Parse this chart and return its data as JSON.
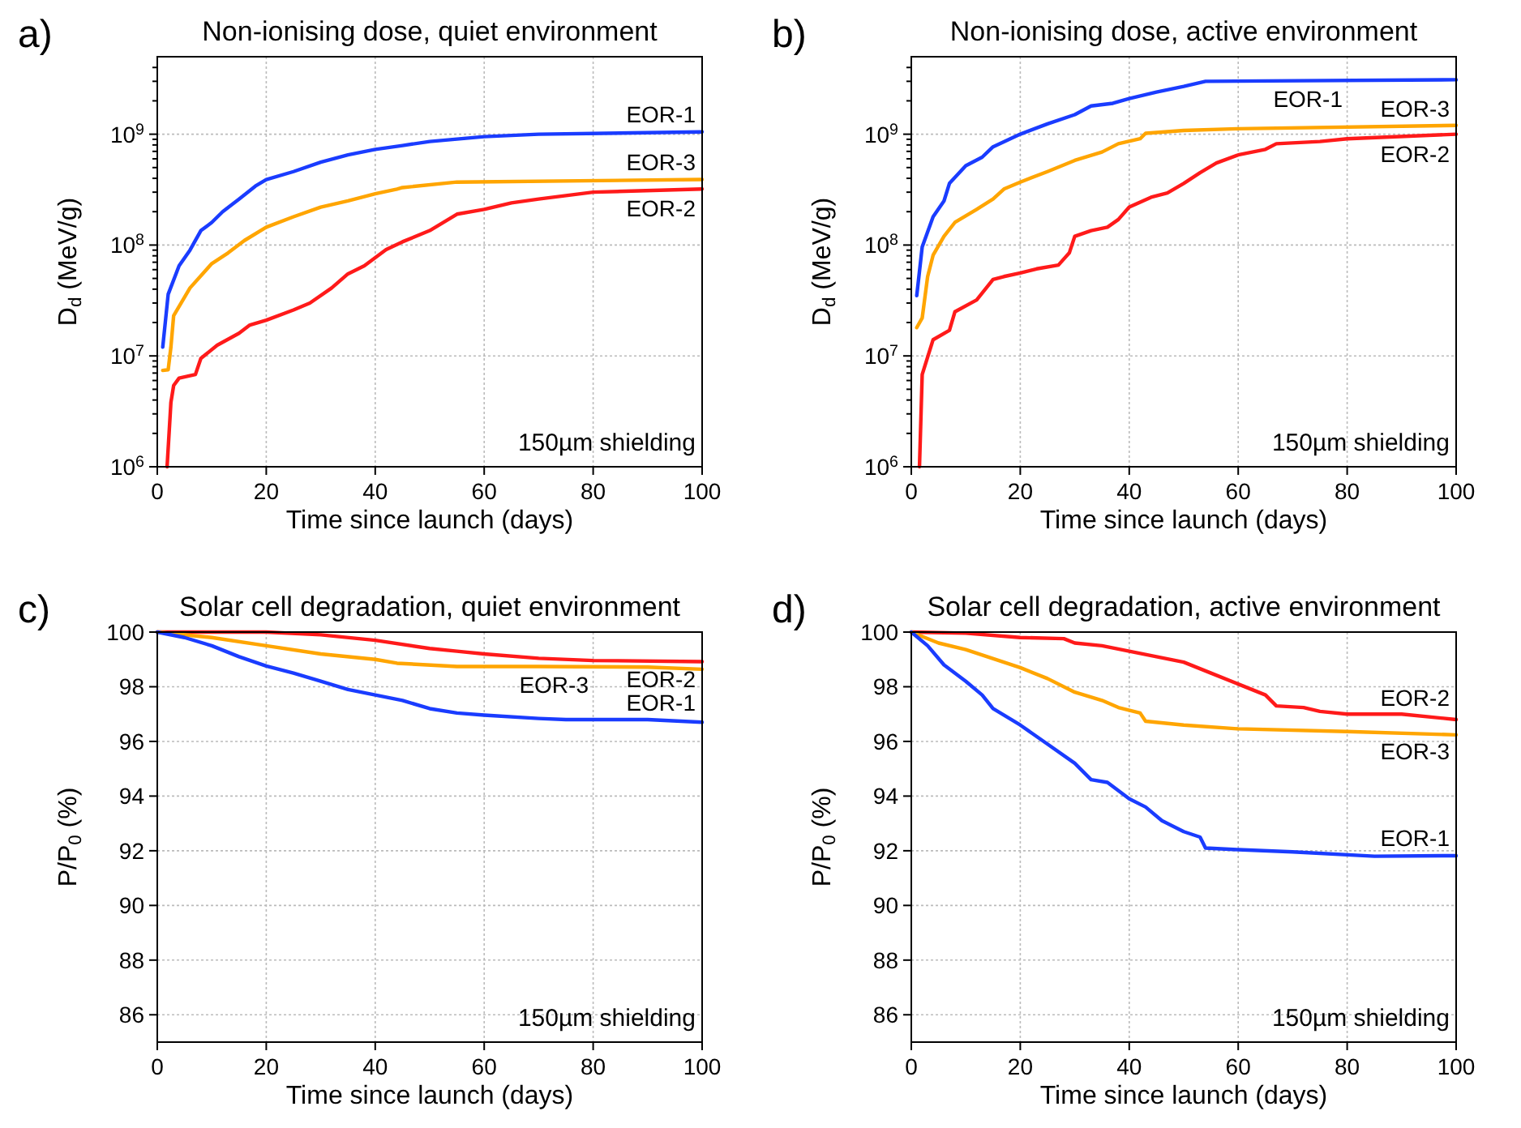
{
  "chart_data": [
    {
      "type": "line",
      "title": "Non-ionising dose, quiet environment",
      "xlabel": "Time since launch (days)",
      "ylabel": "D$_{d}$ (MeV/g)",
      "annotations": [
        "a)",
        "150µm shielding"
      ],
      "log": "y",
      "grid": true,
      "marker": "none",
      "line_style": "solid",
      "xlim": [
        0,
        100
      ],
      "xticks": [
        0,
        20,
        40,
        60,
        80,
        100
      ],
      "ylim": [
        1000000,
        5000000000
      ],
      "yticks": [
        {
          "value": 1000000,
          "label": "10$^{6}$"
        },
        {
          "value": 2000000,
          "label": null
        },
        {
          "value": 3000000,
          "label": null
        },
        {
          "value": 4000000,
          "label": null
        },
        {
          "value": 5000000,
          "label": null
        },
        {
          "value": 6000000,
          "label": null
        },
        {
          "value": 7000000,
          "label": null
        },
        {
          "value": 8000000,
          "label": null
        },
        {
          "value": 9000000,
          "label": null
        },
        {
          "value": 10000000,
          "label": "10$^{7}$"
        },
        {
          "value": 20000000,
          "label": null
        },
        {
          "value": 30000000,
          "label": null
        },
        {
          "value": 40000000,
          "label": null
        },
        {
          "value": 50000000,
          "label": null
        },
        {
          "value": 60000000,
          "label": null
        },
        {
          "value": 70000000,
          "label": null
        },
        {
          "value": 80000000,
          "label": null
        },
        {
          "value": 90000000,
          "label": null
        },
        {
          "value": 100000000,
          "label": "10$^{8}$"
        },
        {
          "value": 200000000,
          "label": null
        },
        {
          "value": 300000000,
          "label": null
        },
        {
          "value": 400000000,
          "label": null
        },
        {
          "value": 500000000,
          "label": null
        },
        {
          "value": 600000000,
          "label": null
        },
        {
          "value": 700000000,
          "label": null
        },
        {
          "value": 800000000,
          "label": null
        },
        {
          "value": 900000000,
          "label": null
        },
        {
          "value": 1000000000,
          "label": "10$^{9}$"
        },
        {
          "value": 2000000000,
          "label": null
        },
        {
          "value": 3000000000,
          "label": null
        },
        {
          "value": 4000000000,
          "label": null
        }
      ],
      "series": [
        {
          "name": "EOR-1",
          "color": "#1a3cff",
          "x": [
            1,
            2,
            4,
            6,
            8,
            10,
            12,
            15,
            18,
            20,
            25,
            30,
            35,
            40,
            45,
            50,
            60,
            70,
            100
          ],
          "values": [
            12000000,
            36000000,
            65000000,
            90000000,
            135000000,
            160000000,
            200000000,
            260000000,
            340000000,
            390000000,
            460000000,
            560000000,
            650000000,
            730000000,
            790000000,
            860000000,
            950000000,
            1000000000,
            1050000000
          ]
        },
        {
          "name": "EOR-3",
          "color": "#ffa500",
          "x": [
            1,
            2,
            2.5,
            3,
            6,
            10,
            13,
            16,
            20,
            25,
            30,
            35,
            40,
            44,
            45,
            55,
            100
          ],
          "values": [
            7400000,
            7500000,
            12000000,
            23000000,
            41000000,
            68000000,
            85000000,
            110000000,
            145000000,
            180000000,
            220000000,
            250000000,
            290000000,
            320000000,
            330000000,
            370000000,
            390000000
          ]
        },
        {
          "name": "EOR-2",
          "color": "#ff1a1a",
          "x": [
            1.8,
            2.5,
            3,
            4,
            7,
            8,
            11,
            15,
            17,
            20,
            25,
            28,
            32,
            35,
            38,
            42,
            45,
            50,
            55,
            60,
            65,
            70,
            80,
            100
          ],
          "values": [
            1000000,
            3800000,
            5400000,
            6300000,
            6800000,
            9500000,
            12500000,
            16000000,
            19000000,
            21000000,
            26000000,
            30000000,
            41000000,
            55000000,
            65000000,
            91000000,
            107000000,
            135000000,
            190000000,
            210000000,
            240000000,
            260000000,
            300000000,
            320000000
          ]
        }
      ]
    },
    {
      "type": "line",
      "title": "Non-ionising dose, active environment",
      "xlabel": "Time since launch (days)",
      "ylabel": "D$_{d}$ (MeV/g)",
      "annotations": [
        "b)",
        "150µm shielding"
      ],
      "log": "y",
      "grid": true,
      "marker": "none",
      "line_style": "solid",
      "xlim": [
        0,
        100
      ],
      "xticks": [
        0,
        20,
        40,
        60,
        80,
        100
      ],
      "ylim": [
        1000000,
        5000000000
      ],
      "yticks": [
        {
          "value": 1000000,
          "label": "10$^{6}$"
        },
        {
          "value": 2000000,
          "label": null
        },
        {
          "value": 3000000,
          "label": null
        },
        {
          "value": 4000000,
          "label": null
        },
        {
          "value": 5000000,
          "label": null
        },
        {
          "value": 6000000,
          "label": null
        },
        {
          "value": 7000000,
          "label": null
        },
        {
          "value": 8000000,
          "label": null
        },
        {
          "value": 9000000,
          "label": null
        },
        {
          "value": 10000000,
          "label": "10$^{7}$"
        },
        {
          "value": 20000000,
          "label": null
        },
        {
          "value": 30000000,
          "label": null
        },
        {
          "value": 40000000,
          "label": null
        },
        {
          "value": 50000000,
          "label": null
        },
        {
          "value": 60000000,
          "label": null
        },
        {
          "value": 70000000,
          "label": null
        },
        {
          "value": 80000000,
          "label": null
        },
        {
          "value": 90000000,
          "label": null
        },
        {
          "value": 100000000,
          "label": "10$^{8}$"
        },
        {
          "value": 200000000,
          "label": null
        },
        {
          "value": 300000000,
          "label": null
        },
        {
          "value": 400000000,
          "label": null
        },
        {
          "value": 500000000,
          "label": null
        },
        {
          "value": 600000000,
          "label": null
        },
        {
          "value": 700000000,
          "label": null
        },
        {
          "value": 800000000,
          "label": null
        },
        {
          "value": 900000000,
          "label": null
        },
        {
          "value": 1000000000,
          "label": "10$^{9}$"
        },
        {
          "value": 2000000000,
          "label": null
        },
        {
          "value": 3000000000,
          "label": null
        },
        {
          "value": 4000000000,
          "label": null
        }
      ],
      "series": [
        {
          "name": "EOR-1",
          "color": "#1a3cff",
          "x": [
            1,
            2,
            4,
            6,
            7,
            10,
            13,
            15,
            20,
            25,
            30,
            33,
            37,
            40,
            45,
            50,
            54,
            100
          ],
          "values": [
            35000000,
            96000000,
            180000000,
            250000000,
            360000000,
            520000000,
            620000000,
            770000000,
            1000000000,
            1240000000,
            1500000000,
            1800000000,
            1900000000,
            2100000000,
            2400000000,
            2700000000,
            3000000000,
            3100000000
          ]
        },
        {
          "name": "EOR-3",
          "color": "#ffa500",
          "x": [
            1,
            2,
            3,
            4,
            6,
            8,
            12,
            15,
            17,
            20,
            25,
            30,
            35,
            38,
            42,
            43,
            50,
            60,
            100
          ],
          "values": [
            18000000,
            22000000,
            52000000,
            81000000,
            120000000,
            160000000,
            210000000,
            260000000,
            320000000,
            370000000,
            460000000,
            580000000,
            690000000,
            820000000,
            910000000,
            1020000000,
            1080000000,
            1120000000,
            1200000000
          ]
        },
        {
          "name": "EOR-2",
          "color": "#ff1a1a",
          "x": [
            1.5,
            2,
            4,
            7,
            8,
            12,
            15,
            17,
            20,
            23,
            27,
            29,
            30,
            33,
            36,
            38,
            40,
            44,
            47,
            50,
            53,
            56,
            60,
            65,
            67,
            75,
            80,
            100
          ],
          "values": [
            1000000,
            6800000,
            14000000,
            17000000,
            25000000,
            32000000,
            49000000,
            52000000,
            56000000,
            61000000,
            66000000,
            85000000,
            120000000,
            135000000,
            145000000,
            170000000,
            220000000,
            270000000,
            295000000,
            360000000,
            450000000,
            550000000,
            650000000,
            730000000,
            820000000,
            860000000,
            910000000,
            1000000000
          ]
        }
      ]
    },
    {
      "type": "line",
      "title": "Solar cell degradation, quiet environment",
      "xlabel": "Time since launch (days)",
      "ylabel": "P/P$_{0}$ (%)",
      "annotations": [
        "c)",
        "150µm shielding"
      ],
      "grid": true,
      "marker": "none",
      "line_style": "solid",
      "xlim": [
        0,
        100
      ],
      "xticks": [
        0,
        20,
        40,
        60,
        80,
        100
      ],
      "ylim": [
        85,
        100
      ],
      "yticks": [
        86,
        88,
        90,
        92,
        94,
        96,
        98,
        100
      ],
      "series": [
        {
          "name": "EOR-2",
          "color": "#ff1a1a",
          "x": [
            0,
            20,
            30,
            40,
            50,
            55,
            60,
            70,
            80,
            100
          ],
          "values": [
            100,
            100,
            99.9,
            99.7,
            99.4,
            99.3,
            99.2,
            99.04,
            98.96,
            98.92
          ]
        },
        {
          "name": "EOR-3",
          "color": "#ffa500",
          "x": [
            0,
            10,
            20,
            30,
            40,
            44,
            55,
            70,
            90,
            100
          ],
          "values": [
            100,
            99.8,
            99.5,
            99.2,
            99.0,
            98.86,
            98.74,
            98.74,
            98.72,
            98.64
          ]
        },
        {
          "name": "EOR-1",
          "color": "#1a3cff",
          "x": [
            0,
            5,
            10,
            15,
            20,
            25,
            30,
            35,
            40,
            45,
            50,
            55,
            60,
            70,
            75,
            90,
            100
          ],
          "values": [
            100,
            99.8,
            99.5,
            99.1,
            98.76,
            98.5,
            98.2,
            97.9,
            97.7,
            97.5,
            97.2,
            97.04,
            96.96,
            96.84,
            96.8,
            96.8,
            96.7
          ]
        }
      ]
    },
    {
      "type": "line",
      "title": "Solar cell degradation, active environment",
      "xlabel": "Time since launch (days)",
      "ylabel": "P/P$_{0}$ (%)",
      "annotations": [
        "d)",
        "150µm shielding"
      ],
      "grid": true,
      "marker": "none",
      "line_style": "solid",
      "xlim": [
        0,
        100
      ],
      "xticks": [
        0,
        20,
        40,
        60,
        80,
        100
      ],
      "ylim": [
        85,
        100
      ],
      "yticks": [
        86,
        88,
        90,
        92,
        94,
        96,
        98,
        100
      ],
      "series": [
        {
          "name": "EOR-2",
          "color": "#ff1a1a",
          "x": [
            0,
            10,
            20,
            28,
            30,
            35,
            40,
            45,
            50,
            55,
            60,
            65,
            67,
            72,
            75,
            80,
            90,
            100
          ],
          "values": [
            100,
            99.96,
            99.8,
            99.76,
            99.6,
            99.5,
            99.3,
            99.1,
            98.9,
            98.5,
            98.1,
            97.7,
            97.3,
            97.24,
            97.1,
            97.0,
            97.0,
            96.8
          ]
        },
        {
          "name": "EOR-3",
          "color": "#ffa500",
          "x": [
            0,
            5,
            10,
            20,
            25,
            30,
            35,
            38,
            42,
            43,
            50,
            60,
            80,
            100
          ],
          "values": [
            100,
            99.6,
            99.36,
            98.7,
            98.3,
            97.8,
            97.5,
            97.24,
            97.04,
            96.74,
            96.6,
            96.46,
            96.36,
            96.24
          ]
        },
        {
          "name": "EOR-1",
          "color": "#1a3cff",
          "x": [
            0,
            3,
            6,
            10,
            13,
            15,
            20,
            25,
            30,
            33,
            36,
            40,
            43,
            46,
            50,
            53,
            54,
            60,
            70,
            85,
            100
          ],
          "values": [
            100,
            99.5,
            98.8,
            98.2,
            97.7,
            97.2,
            96.6,
            95.9,
            95.2,
            94.6,
            94.5,
            93.9,
            93.6,
            93.1,
            92.7,
            92.5,
            92.1,
            92.04,
            91.96,
            91.8,
            91.82
          ]
        }
      ]
    }
  ]
}
